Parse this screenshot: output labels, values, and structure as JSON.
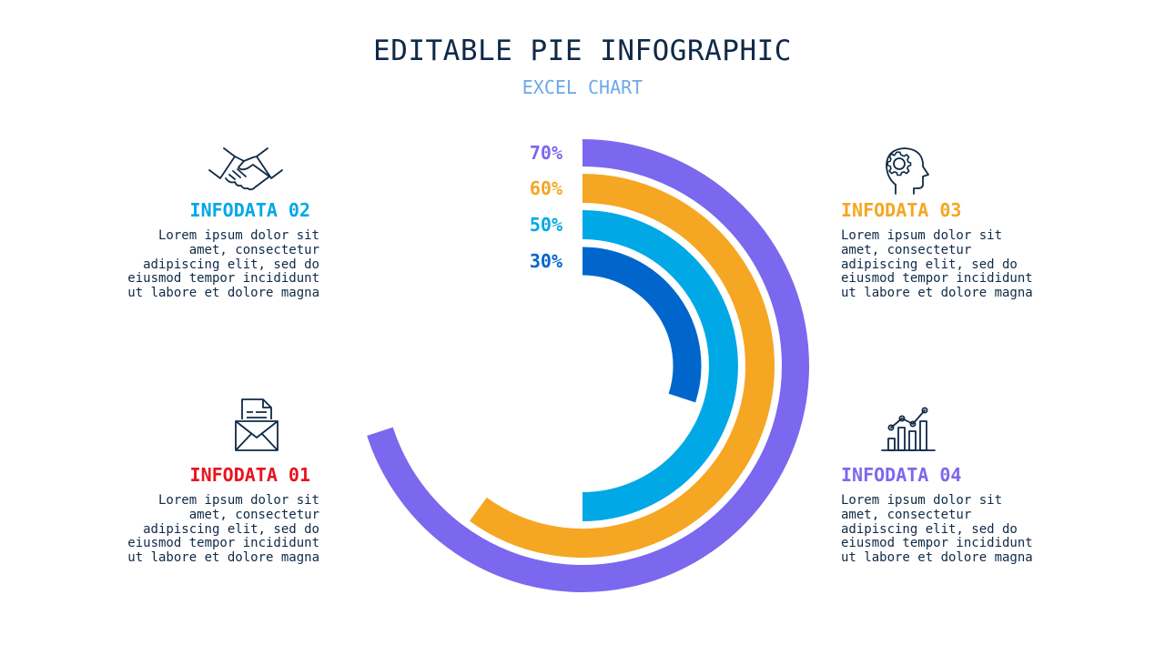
{
  "header": {
    "title": "EDITABLE PIE INFOGRAPHIC",
    "subtitle": "EXCEL CHART"
  },
  "chart_data": {
    "type": "pie",
    "subtype": "concentric-ring",
    "series": [
      {
        "label": "70%",
        "value": 70,
        "color": "#7b68ee"
      },
      {
        "label": "60%",
        "value": 60,
        "color": "#f5a623"
      },
      {
        "label": "50%",
        "value": 50,
        "color": "#00a8e6"
      },
      {
        "label": "30%",
        "value": 30,
        "color": "#0066cc"
      }
    ]
  },
  "blocks": {
    "b02": {
      "heading": "INFODATA 02",
      "color": "#00a8e6",
      "icon": "handshake-icon",
      "body": "Lorem ipsum dolor sit\namet, consectetur\nadipiscing elit, sed do\neiusmod tempor incididunt\nut labore et dolore magna"
    },
    "b01": {
      "heading": "INFODATA 01",
      "color": "#e8141e",
      "icon": "envelope-icon",
      "body": "Lorem ipsum dolor sit\namet, consectetur\nadipiscing elit, sed do\neiusmod tempor incididunt\nut labore et dolore magna"
    },
    "b03": {
      "heading": "INFODATA 03",
      "color": "#f5a623",
      "icon": "head-gear-icon",
      "body": "Lorem ipsum dolor sit\namet, consectetur\nadipiscing elit, sed do\neiusmod tempor incididunt\nut labore et dolore magna"
    },
    "b04": {
      "heading": "INFODATA 04",
      "color": "#7b68ee",
      "icon": "bar-chart-icon",
      "body": "Lorem ipsum dolor sit\namet, consectetur\nadipiscing elit, sed do\neiusmod tempor incididunt\nut labore et dolore magna"
    }
  }
}
